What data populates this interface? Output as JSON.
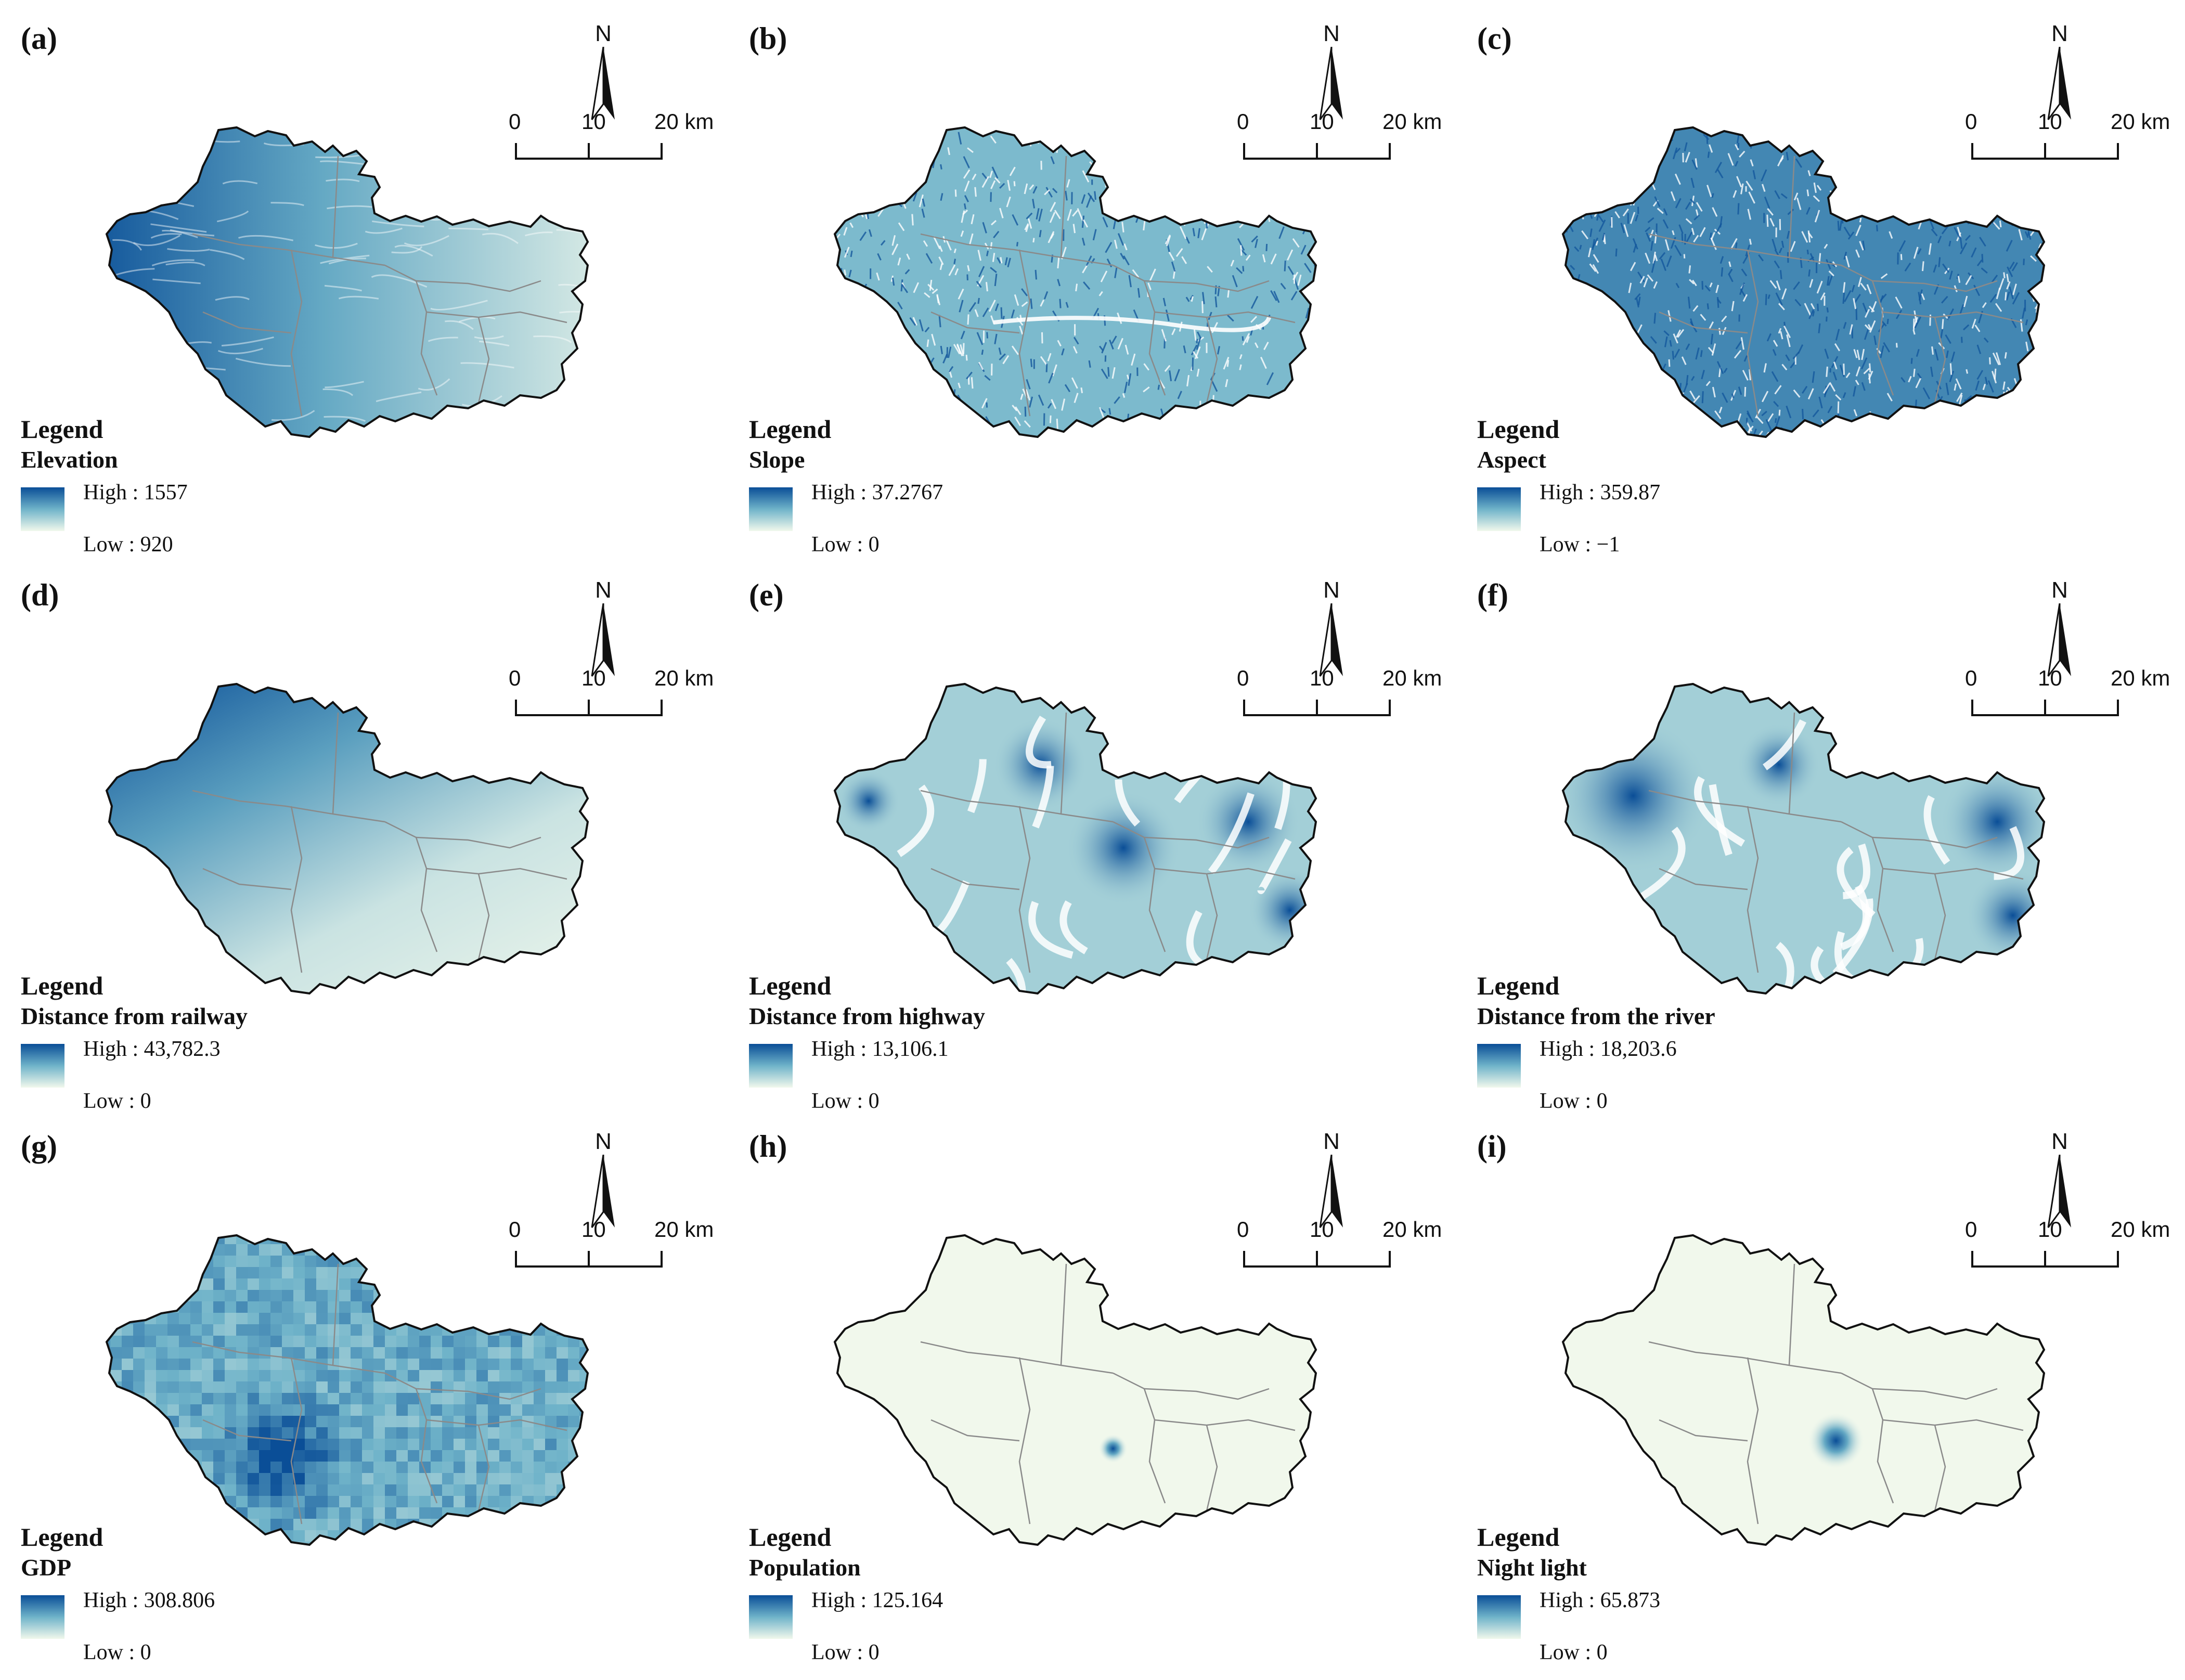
{
  "colors": {
    "high": "#0a4e97",
    "mid": "#6fb3c9",
    "low": "#f1f8ec",
    "boundary": "#111111",
    "district_lines": "#8a8a8a"
  },
  "north_label": "N",
  "scale_labels": [
    "0",
    "10",
    "20 km"
  ],
  "legend_heading": "Legend",
  "panels": [
    {
      "label": "(a)",
      "layer": "Elevation",
      "high": "High : 1557",
      "low": "Low : 920",
      "pattern": "elevation"
    },
    {
      "label": "(b)",
      "layer": "Slope",
      "high": "High : 37.2767",
      "low": "Low : 0",
      "pattern": "slope"
    },
    {
      "label": "(c)",
      "layer": "Aspect",
      "high": "High : 359.87",
      "low": "Low : −1",
      "pattern": "aspect"
    },
    {
      "label": "(d)",
      "layer": "Distance from railway",
      "high": "High : 43,782.3",
      "low": "Low : 0",
      "pattern": "railway"
    },
    {
      "label": "(e)",
      "layer": "Distance from highway",
      "high": "High : 13,106.1",
      "low": "Low : 0",
      "pattern": "highway"
    },
    {
      "label": "(f)",
      "layer": "Distance from the river",
      "high": "High :  18,203.6",
      "low": "Low : 0",
      "pattern": "river"
    },
    {
      "label": "(g)",
      "layer": "GDP",
      "high": "High : 308.806",
      "low": "Low : 0",
      "pattern": "gdp"
    },
    {
      "label": "(h)",
      "layer": "Population",
      "high": "High : 125.164",
      "low": "Low : 0",
      "pattern": "population"
    },
    {
      "label": "(i)",
      "layer": "Night light",
      "high": "High : 65.873",
      "low": "Low : 0",
      "pattern": "nightlight"
    }
  ]
}
